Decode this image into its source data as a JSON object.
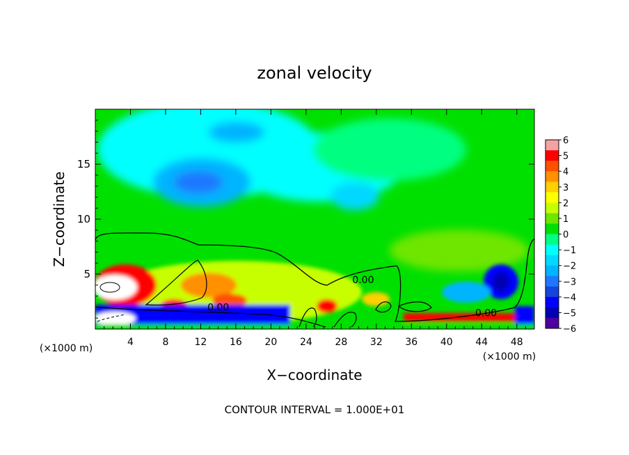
{
  "chart_data": {
    "type": "heatmap",
    "title": "zonal velocity",
    "xlabel": "X−coordinate",
    "ylabel": "Z−coordinate",
    "x_unit_left": "(×1000 m)",
    "x_unit_right": "(×1000 m)",
    "xlim": [
      0,
      50
    ],
    "ylim": [
      0,
      20
    ],
    "x_ticks": [
      4,
      8,
      12,
      16,
      20,
      24,
      28,
      32,
      36,
      40,
      44,
      48
    ],
    "y_ticks": [
      5,
      10,
      15
    ],
    "footer": "CONTOUR INTERVAL = 1.000E+01",
    "colorbar": {
      "min": -6,
      "max": 6,
      "tick_labels": [
        "6",
        "5",
        "4",
        "3",
        "2",
        "1",
        "0",
        "−1",
        "−2",
        "−3",
        "−4",
        "−5",
        "−6"
      ],
      "colors": [
        "#f4a3a3",
        "#ff0000",
        "#ff5000",
        "#ff9000",
        "#ffd000",
        "#ffff00",
        "#c8ff00",
        "#6ee600",
        "#00e000",
        "#00ff80",
        "#00ffff",
        "#00d8ff",
        "#00b4ff",
        "#1e78ff",
        "#1446dc",
        "#0000ff",
        "#0000b4",
        "#5000a0"
      ]
    },
    "contours": [
      {
        "label": "0.00",
        "label_x": 30.5,
        "label_z": 4.5
      },
      {
        "label": "0.00",
        "label_x": 14,
        "label_z": 2.0
      },
      {
        "label": "0.00",
        "label_x": 44.5,
        "label_z": 1.5
      }
    ]
  }
}
